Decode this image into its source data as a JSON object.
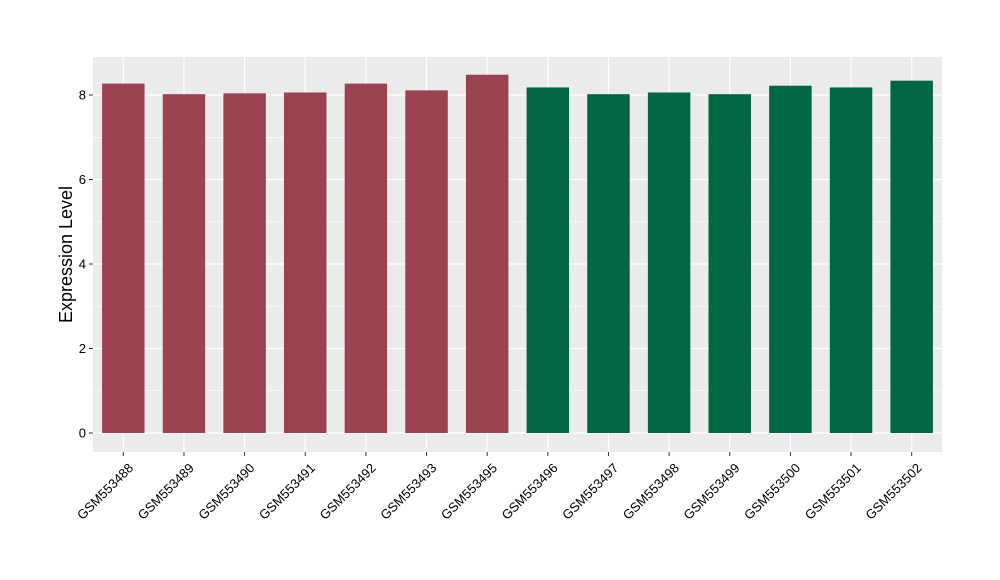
{
  "chart_data": {
    "type": "bar",
    "title": "",
    "xlabel": "",
    "ylabel": "Expression Level",
    "ylim": [
      -0.45,
      8.9
    ],
    "yticks": [
      0,
      2,
      4,
      6,
      8
    ],
    "grid": true,
    "categories": [
      "GSM553488",
      "GSM553489",
      "GSM553490",
      "GSM553491",
      "GSM553492",
      "GSM553493",
      "GSM553495",
      "GSM553496",
      "GSM553497",
      "GSM553498",
      "GSM553499",
      "GSM553500",
      "GSM553501",
      "GSM553502"
    ],
    "values": [
      8.27,
      8.02,
      8.04,
      8.06,
      8.27,
      8.11,
      8.48,
      8.18,
      8.02,
      8.06,
      8.02,
      8.22,
      8.18,
      8.34
    ],
    "bar_colors": [
      "#9a4250",
      "#9a4250",
      "#9a4250",
      "#9a4250",
      "#9a4250",
      "#9a4250",
      "#9a4250",
      "#006644",
      "#006644",
      "#006644",
      "#006644",
      "#006644",
      "#006644",
      "#006644"
    ],
    "panel_color": "#ebebeb",
    "gridline_color": "#ffffff"
  }
}
